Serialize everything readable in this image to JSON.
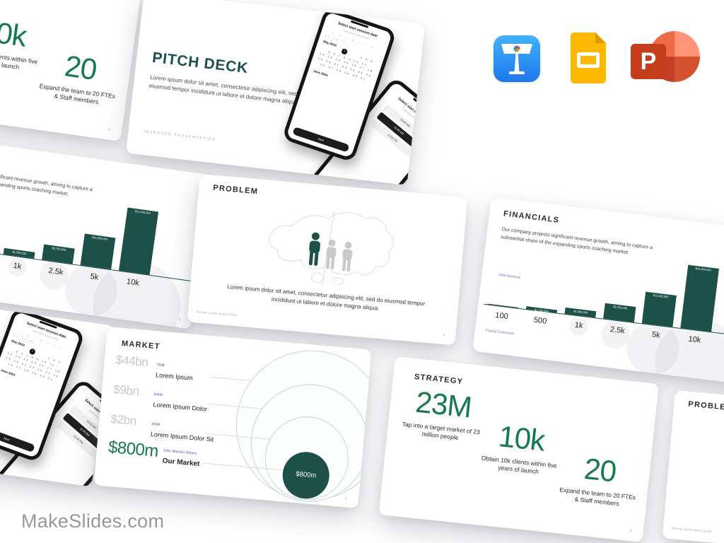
{
  "page": {
    "watermark": "MakeSlides.com"
  },
  "app_icons": {
    "keynote": "Keynote",
    "google_slides": "Google Slides",
    "powerpoint": "PowerPoint",
    "powerpoint_letter": "P"
  },
  "cover": {
    "title": "PITCH DECK",
    "body": "Lorem ipsum dolor sit amet, consectetur adipiscing elit, sed do eiusmod tempor incididunt ut labore et dolore magna aliqua",
    "footer": "INVESTOR  PRESENTATION",
    "phone_calendar": {
      "title": "Select start session date",
      "subtitle": "Lorem ipsum dolor sit amet",
      "day_letters": "S M T W T F S",
      "prev_days": "29 30 31",
      "month": "May 2024",
      "selected_day": "1",
      "weeks": [
        "2 3 4",
        "5 6 7 8 9 10 11",
        "12 13 14 15 16 17 18",
        "19 20 21 22 23 24 25",
        "26 27 28 29 30 31"
      ],
      "next_month": "June 2024",
      "next_button": "Next"
    },
    "phone_time": {
      "title": "Select start session time",
      "subtitle": "Lorem ipsum dolor sit",
      "options": [
        "10:00 AM",
        "11:00 AM",
        "12:00 PM"
      ]
    }
  },
  "problem": {
    "title": "PROBLEM",
    "body": "Lorem ipsum dolor sit amet, consectetur adipiscing elit, sed do eiusmod tempor incididunt ut labore et dolore magna aliqua.",
    "source": "Source: Lorem Ipsum (2024)",
    "page": "3"
  },
  "financials": {
    "title": "FINANCIALS",
    "body": "Our company projects significant revenue growth, aiming to capture a substantial share of the expanding sports coaching market.",
    "y_axis_label": "Total Revenue",
    "x_axis_label": "Paying Customers",
    "page": "6",
    "chart": {
      "type": "bar",
      "categories": [
        "100",
        "500",
        "1k",
        "2.5k",
        "5k",
        "10k"
      ],
      "values": [
        230000,
        1150000,
        2300000,
        5750000,
        11500000,
        23000000
      ],
      "value_labels": [
        "$230,000",
        "$1,150,000",
        "$2,300,000",
        "$5,750,000",
        "$11,500,000",
        "$23,000,000"
      ]
    }
  },
  "market": {
    "title": "MARKET",
    "page": "4",
    "rows": [
      {
        "value": "$44bn",
        "tag": "TAM",
        "label": "Lorem Ipsum"
      },
      {
        "value": "$9bn",
        "tag": "SAM",
        "label": "Lorem Ipsum Dolor"
      },
      {
        "value": "$2bn",
        "tag": "SOM",
        "label": "Lorem Ipsum Dolor Sit"
      },
      {
        "value": "$800m",
        "tag": "10% Market Share",
        "label": "Our Market"
      }
    ],
    "bubble_label": "$800m"
  },
  "strategy": {
    "title": "STRATEGY",
    "page": "8",
    "stats": [
      {
        "value": "23M",
        "caption": "Tap into a target market of 23 million people"
      },
      {
        "value": "10k",
        "caption": "Obtain 10k clients within five years of launch"
      },
      {
        "value": "20",
        "caption": "Expand the team to 20 FTEs & Staff members"
      }
    ]
  }
}
